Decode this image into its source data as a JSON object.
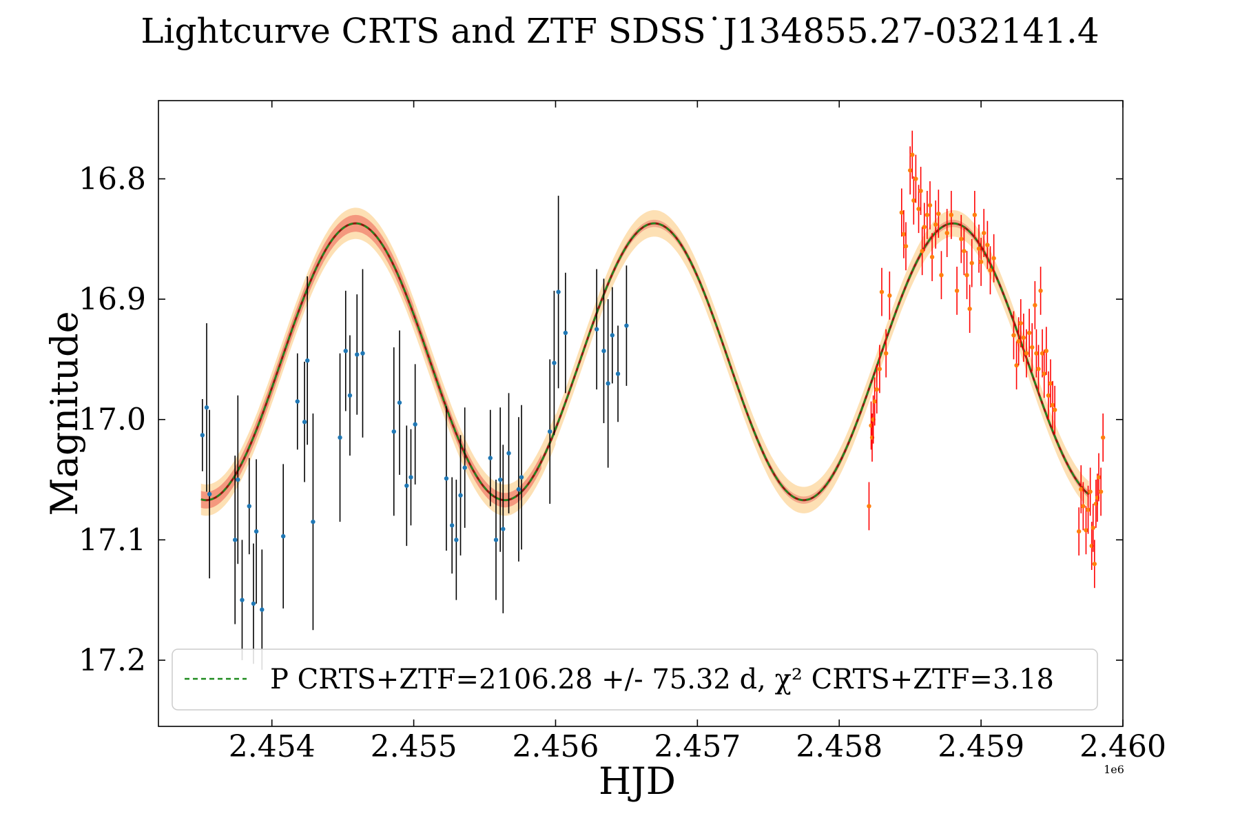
{
  "chart_data": {
    "type": "scatter",
    "title": "Lightcurve CRTS and ZTF SDSS˙J134855.27-032141.4",
    "xlabel": "HJD",
    "ylabel": "Magnitude",
    "x_offset_label": "1e6",
    "xlim": [
      2453200,
      2460000
    ],
    "ylim": [
      17.255,
      16.735
    ],
    "y_inverted": true,
    "xticks": [
      2454000,
      2455000,
      2456000,
      2457000,
      2458000,
      2459000,
      2460000
    ],
    "xtick_labels": [
      "2.454",
      "2.455",
      "2.456",
      "2.457",
      "2.458",
      "2.459",
      "2.460"
    ],
    "yticks": [
      16.8,
      16.9,
      17.0,
      17.1,
      17.2
    ],
    "ytick_labels": [
      "16.8",
      "16.9",
      "17.0",
      "17.1",
      "17.2"
    ],
    "grid": false,
    "legend": {
      "placement": "lower-center",
      "entries": [
        {
          "label": "P CRTS+ZTF=2106.28 +/- 75.32 d, χ² CRTS+ZTF=3.18",
          "style": "dashed",
          "color": "#1e8a1e"
        }
      ]
    },
    "model": {
      "period_days": 2106.28,
      "period_err_days": 75.32,
      "chi2": 3.18,
      "mean_mag": 16.952,
      "amplitude": 0.115,
      "peak_hjd": 2454590,
      "x_range": [
        2453500,
        2459760
      ],
      "bands": [
        {
          "name": "outer-band-crts",
          "x_range": [
            2453500,
            2456000
          ],
          "half_width": 0.013,
          "color": "#fde0b4"
        },
        {
          "name": "outer-band-ztf",
          "x_range": [
            2456000,
            2459760
          ],
          "half_width": 0.011,
          "color": "#fde0b4"
        },
        {
          "name": "inner-band-crts",
          "x_range": [
            2453500,
            2455000
          ],
          "half_width": 0.007,
          "color": "#f4987e"
        },
        {
          "name": "inner-band-crts-2",
          "x_range": [
            2455000,
            2455900
          ],
          "half_width": 0.006,
          "color": "#f4987e"
        },
        {
          "name": "inner-band-ztf",
          "x_range": [
            2455900,
            2459760
          ],
          "half_width": 0.003,
          "color": "#f4a88a"
        }
      ],
      "line_color": "#1e8a1e",
      "curve_color": "#8b1a10"
    },
    "series": [
      {
        "name": "CRTS",
        "marker_color": "#1f77b4",
        "errbar_color": "#000000",
        "points": [
          [
            2453510,
            17.013,
            0.03
          ],
          [
            2453540,
            16.99,
            0.07
          ],
          [
            2453560,
            17.062,
            0.07
          ],
          [
            2453740,
            17.1,
            0.07
          ],
          [
            2453760,
            17.05,
            0.07
          ],
          [
            2453790,
            17.15,
            0.05
          ],
          [
            2453840,
            17.072,
            0.04
          ],
          [
            2453870,
            17.153,
            0.05
          ],
          [
            2453890,
            17.093,
            0.06
          ],
          [
            2453930,
            17.158,
            0.05
          ],
          [
            2454080,
            17.097,
            0.06
          ],
          [
            2454180,
            16.985,
            0.04
          ],
          [
            2454230,
            17.002,
            0.05
          ],
          [
            2454250,
            16.951,
            0.07
          ],
          [
            2454290,
            17.085,
            0.09
          ],
          [
            2454480,
            17.015,
            0.07
          ],
          [
            2454520,
            16.943,
            0.05
          ],
          [
            2454550,
            16.98,
            0.05
          ],
          [
            2454600,
            16.946,
            0.05
          ],
          [
            2454640,
            16.945,
            0.07
          ],
          [
            2454860,
            17.01,
            0.07
          ],
          [
            2454900,
            16.986,
            0.06
          ],
          [
            2454950,
            17.055,
            0.05
          ],
          [
            2454980,
            17.048,
            0.04
          ],
          [
            2455010,
            17.004,
            0.05
          ],
          [
            2455230,
            17.049,
            0.06
          ],
          [
            2455270,
            17.088,
            0.04
          ],
          [
            2455300,
            17.1,
            0.05
          ],
          [
            2455330,
            17.063,
            0.05
          ],
          [
            2455360,
            17.04,
            0.05
          ],
          [
            2455540,
            17.032,
            0.04
          ],
          [
            2455580,
            17.1,
            0.05
          ],
          [
            2455610,
            17.05,
            0.06
          ],
          [
            2455630,
            17.091,
            0.07
          ],
          [
            2455670,
            17.028,
            0.05
          ],
          [
            2455740,
            17.058,
            0.06
          ],
          [
            2455760,
            17.048,
            0.06
          ],
          [
            2455960,
            17.01,
            0.06
          ],
          [
            2455990,
            16.953,
            0.06
          ],
          [
            2456020,
            16.894,
            0.08
          ],
          [
            2456070,
            16.928,
            0.05
          ],
          [
            2456290,
            16.925,
            0.05
          ],
          [
            2456340,
            16.943,
            0.06
          ],
          [
            2456370,
            16.97,
            0.07
          ],
          [
            2456400,
            16.93,
            0.04
          ],
          [
            2456440,
            16.962,
            0.04
          ],
          [
            2456500,
            16.922,
            0.05
          ]
        ]
      },
      {
        "name": "ZTF",
        "marker_color": "#ff7f0e",
        "errbar_color": "#ff0000",
        "points": [
          [
            2458210,
            17.072,
            0.02
          ],
          [
            2458225,
            17.005,
            0.02
          ],
          [
            2458232,
            17.015,
            0.02
          ],
          [
            2458240,
            17.0,
            0.02
          ],
          [
            2458250,
            16.985,
            0.02
          ],
          [
            2458265,
            16.975,
            0.02
          ],
          [
            2458285,
            16.958,
            0.02
          ],
          [
            2458300,
            16.894,
            0.02
          ],
          [
            2458330,
            16.945,
            0.02
          ],
          [
            2458355,
            16.897,
            0.02
          ],
          [
            2458440,
            16.828,
            0.02
          ],
          [
            2458455,
            16.846,
            0.02
          ],
          [
            2458470,
            16.856,
            0.02
          ],
          [
            2458500,
            16.793,
            0.02
          ],
          [
            2458515,
            16.78,
            0.02
          ],
          [
            2458525,
            16.818,
            0.02
          ],
          [
            2458540,
            16.8,
            0.02
          ],
          [
            2458560,
            16.825,
            0.02
          ],
          [
            2458575,
            16.81,
            0.02
          ],
          [
            2458585,
            16.86,
            0.02
          ],
          [
            2458600,
            16.84,
            0.02
          ],
          [
            2458620,
            16.83,
            0.02
          ],
          [
            2458640,
            16.822,
            0.02
          ],
          [
            2458655,
            16.865,
            0.02
          ],
          [
            2458680,
            16.838,
            0.02
          ],
          [
            2458700,
            16.829,
            0.02
          ],
          [
            2458720,
            16.88,
            0.02
          ],
          [
            2458760,
            16.845,
            0.02
          ],
          [
            2458790,
            16.83,
            0.02
          ],
          [
            2458830,
            16.893,
            0.02
          ],
          [
            2458860,
            16.85,
            0.02
          ],
          [
            2458880,
            16.86,
            0.02
          ],
          [
            2458900,
            16.88,
            0.02
          ],
          [
            2458920,
            16.908,
            0.02
          ],
          [
            2458935,
            16.87,
            0.02
          ],
          [
            2458955,
            16.83,
            0.02
          ],
          [
            2458985,
            16.858,
            0.02
          ],
          [
            2459000,
            16.869,
            0.02
          ],
          [
            2459020,
            16.845,
            0.02
          ],
          [
            2459045,
            16.855,
            0.02
          ],
          [
            2459065,
            16.876,
            0.02
          ],
          [
            2459090,
            16.866,
            0.02
          ],
          [
            2459230,
            16.93,
            0.02
          ],
          [
            2459250,
            16.955,
            0.02
          ],
          [
            2459265,
            16.935,
            0.02
          ],
          [
            2459280,
            16.92,
            0.02
          ],
          [
            2459300,
            16.932,
            0.02
          ],
          [
            2459320,
            16.945,
            0.02
          ],
          [
            2459340,
            16.928,
            0.02
          ],
          [
            2459360,
            16.94,
            0.02
          ],
          [
            2459380,
            16.905,
            0.02
          ],
          [
            2459390,
            16.945,
            0.02
          ],
          [
            2459405,
            16.958,
            0.02
          ],
          [
            2459420,
            16.893,
            0.02
          ],
          [
            2459432,
            16.945,
            0.02
          ],
          [
            2459445,
            16.962,
            0.02
          ],
          [
            2459460,
            16.943,
            0.02
          ],
          [
            2459475,
            16.98,
            0.02
          ],
          [
            2459490,
            16.97,
            0.02
          ],
          [
            2459505,
            16.988,
            0.02
          ],
          [
            2459520,
            16.992,
            0.02
          ],
          [
            2459690,
            17.093,
            0.02
          ],
          [
            2459705,
            17.058,
            0.02
          ],
          [
            2459720,
            17.072,
            0.02
          ],
          [
            2459740,
            17.092,
            0.02
          ],
          [
            2459755,
            17.075,
            0.02
          ],
          [
            2459770,
            17.06,
            0.02
          ],
          [
            2459780,
            17.105,
            0.02
          ],
          [
            2459790,
            17.09,
            0.02
          ],
          [
            2459800,
            17.12,
            0.02
          ],
          [
            2459810,
            17.07,
            0.02
          ],
          [
            2459820,
            17.065,
            0.02
          ],
          [
            2459830,
            17.048,
            0.02
          ],
          [
            2459845,
            17.06,
            0.02
          ],
          [
            2459860,
            17.015,
            0.02
          ]
        ]
      }
    ]
  }
}
